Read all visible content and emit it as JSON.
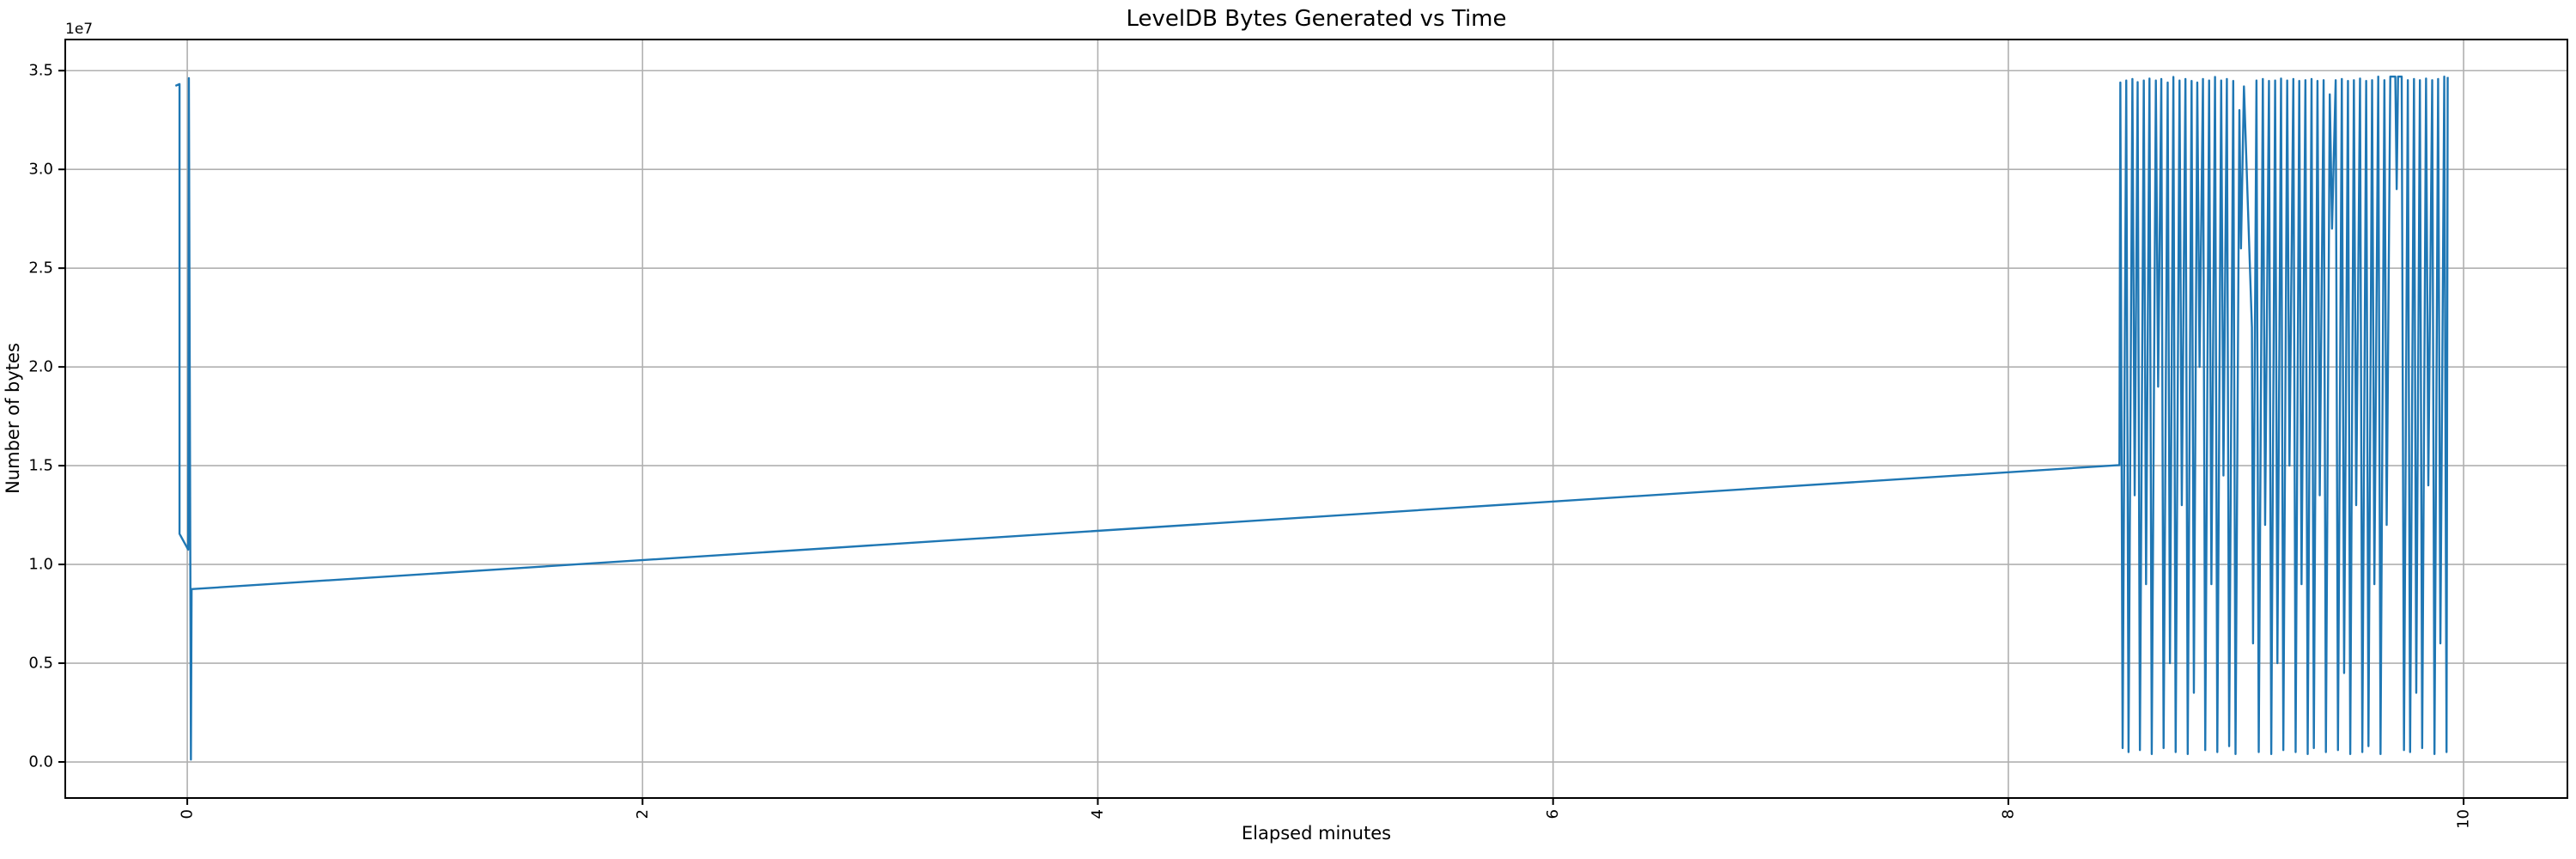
{
  "figure": {
    "title": "LevelDB Bytes Generated vs Time",
    "xlabel": "Elapsed minutes",
    "ylabel": "Number of bytes",
    "y_offset_text": "1e7"
  },
  "chart_data": {
    "type": "line",
    "title": "LevelDB Bytes Generated vs Time",
    "xlabel": "Elapsed minutes",
    "ylabel": "Number of bytes",
    "y_offset_label": "1e7",
    "y_unit_multiplier": 10000000,
    "xlim": [
      -0.536,
      10.456
    ],
    "ylim": [
      -0.1826,
      3.6576
    ],
    "xticks": [
      0,
      2,
      4,
      6,
      8,
      10
    ],
    "xtick_labels": [
      "0",
      "2",
      "4",
      "6",
      "8",
      "10"
    ],
    "xtick_rotation": 90,
    "yticks": [
      0.0,
      0.5,
      1.0,
      1.5,
      2.0,
      2.5,
      3.0,
      3.5
    ],
    "ytick_labels": [
      "0.0",
      "0.5",
      "1.0",
      "1.5",
      "2.0",
      "2.5",
      "3.0",
      "3.5"
    ],
    "grid": true,
    "legend": false,
    "colors": {
      "line": "#1f77b4",
      "grid": "#b0b0b0",
      "axis": "#000000",
      "background": "#ffffff"
    },
    "series": [
      {
        "name": "LevelDB bytes generated",
        "points": [
          [
            -0.052,
            3.423
          ],
          [
            -0.034,
            3.432
          ],
          [
            -0.034,
            1.155
          ],
          [
            0.004,
            1.075
          ],
          [
            0.007,
            3.462
          ],
          [
            0.016,
            0.012
          ],
          [
            0.019,
            0.875
          ],
          [
            8.488,
            1.503
          ],
          [
            8.492,
            3.44
          ],
          [
            8.502,
            0.07
          ],
          [
            8.518,
            3.45
          ],
          [
            8.528,
            0.05
          ],
          [
            8.545,
            3.458
          ],
          [
            8.555,
            1.35
          ],
          [
            8.568,
            3.442
          ],
          [
            8.578,
            0.06
          ],
          [
            8.595,
            3.45
          ],
          [
            8.605,
            0.9
          ],
          [
            8.62,
            3.46
          ],
          [
            8.63,
            0.04
          ],
          [
            8.648,
            3.45
          ],
          [
            8.658,
            1.9
          ],
          [
            8.672,
            3.458
          ],
          [
            8.682,
            0.07
          ],
          [
            8.7,
            3.44
          ],
          [
            8.71,
            0.5
          ],
          [
            8.725,
            3.468
          ],
          [
            8.735,
            0.05
          ],
          [
            8.752,
            3.45
          ],
          [
            8.762,
            1.3
          ],
          [
            8.778,
            3.458
          ],
          [
            8.788,
            0.04
          ],
          [
            8.805,
            3.448
          ],
          [
            8.815,
            0.35
          ],
          [
            8.83,
            3.44
          ],
          [
            8.84,
            2.0
          ],
          [
            8.855,
            3.458
          ],
          [
            8.865,
            0.06
          ],
          [
            8.882,
            3.45
          ],
          [
            8.892,
            0.9
          ],
          [
            8.908,
            3.468
          ],
          [
            8.918,
            0.05
          ],
          [
            8.935,
            3.45
          ],
          [
            8.945,
            1.45
          ],
          [
            8.96,
            3.458
          ],
          [
            8.97,
            0.08
          ],
          [
            8.988,
            3.448
          ],
          [
            8.998,
            0.04
          ],
          [
            9.015,
            3.3
          ],
          [
            9.022,
            2.6
          ],
          [
            9.035,
            3.42
          ],
          [
            9.07,
            2.2
          ],
          [
            9.075,
            0.6
          ],
          [
            9.09,
            3.45
          ],
          [
            9.1,
            0.05
          ],
          [
            9.118,
            3.458
          ],
          [
            9.128,
            1.2
          ],
          [
            9.145,
            3.448
          ],
          [
            9.155,
            0.04
          ],
          [
            9.172,
            3.45
          ],
          [
            9.182,
            0.5
          ],
          [
            9.198,
            3.46
          ],
          [
            9.208,
            0.06
          ],
          [
            9.225,
            3.45
          ],
          [
            9.235,
            1.5
          ],
          [
            9.252,
            3.458
          ],
          [
            9.262,
            0.05
          ],
          [
            9.278,
            3.448
          ],
          [
            9.288,
            0.9
          ],
          [
            9.305,
            3.452
          ],
          [
            9.315,
            0.04
          ],
          [
            9.332,
            3.458
          ],
          [
            9.342,
            0.07
          ],
          [
            9.358,
            3.448
          ],
          [
            9.368,
            1.35
          ],
          [
            9.385,
            3.452
          ],
          [
            9.395,
            0.05
          ],
          [
            9.412,
            3.38
          ],
          [
            9.422,
            2.7
          ],
          [
            9.438,
            3.452
          ],
          [
            9.448,
            0.06
          ],
          [
            9.465,
            3.458
          ],
          [
            9.475,
            0.45
          ],
          [
            9.492,
            3.448
          ],
          [
            9.502,
            0.04
          ],
          [
            9.518,
            3.452
          ],
          [
            9.528,
            1.3
          ],
          [
            9.545,
            3.46
          ],
          [
            9.555,
            0.05
          ],
          [
            9.572,
            3.448
          ],
          [
            9.582,
            0.08
          ],
          [
            9.598,
            3.452
          ],
          [
            9.608,
            0.9
          ],
          [
            9.625,
            3.47
          ],
          [
            9.635,
            0.04
          ],
          [
            9.652,
            3.452
          ],
          [
            9.662,
            1.2
          ],
          [
            9.678,
            3.47
          ],
          [
            9.7,
            3.47
          ],
          [
            9.706,
            2.9
          ],
          [
            9.712,
            3.47
          ],
          [
            9.728,
            3.47
          ],
          [
            9.738,
            0.06
          ],
          [
            9.755,
            3.452
          ],
          [
            9.765,
            0.05
          ],
          [
            9.782,
            3.458
          ],
          [
            9.792,
            0.35
          ],
          [
            9.808,
            3.452
          ],
          [
            9.818,
            0.07
          ],
          [
            9.835,
            3.46
          ],
          [
            9.845,
            1.4
          ],
          [
            9.862,
            3.452
          ],
          [
            9.872,
            0.04
          ],
          [
            9.888,
            3.458
          ],
          [
            9.898,
            0.6
          ],
          [
            9.915,
            3.47
          ],
          [
            9.925,
            0.05
          ],
          [
            9.93,
            3.468
          ]
        ]
      }
    ]
  }
}
